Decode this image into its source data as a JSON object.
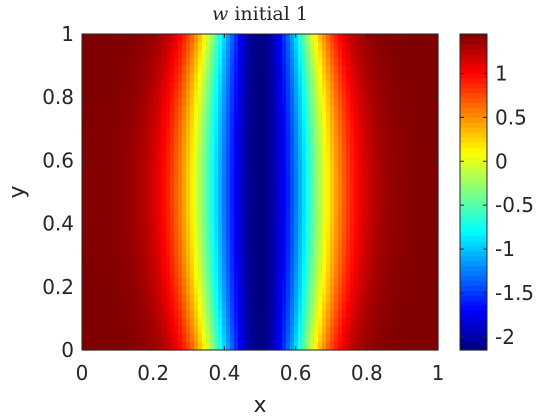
{
  "chart_data": {
    "type": "heatmap",
    "title_var": "w",
    "title_rest": " initial 1",
    "xlabel": "x",
    "ylabel": "y",
    "xlim": [
      0,
      1
    ],
    "ylim": [
      0,
      1
    ],
    "xticks": [
      0,
      0.2,
      0.4,
      0.6,
      0.8,
      1
    ],
    "yticks": [
      0,
      0.2,
      0.4,
      0.6,
      0.8,
      1
    ],
    "xtick_labels": [
      "0",
      "0.2",
      "0.4",
      "0.6",
      "0.8",
      "1"
    ],
    "ytick_labels": [
      "0",
      "0.2",
      "0.4",
      "0.6",
      "0.8",
      "1"
    ],
    "colorbar": {
      "range": [
        -2.15,
        1.45
      ],
      "ticks": [
        1,
        0.5,
        0,
        -0.5,
        -1,
        -1.5,
        -2
      ],
      "tick_labels": [
        "1",
        "0.5",
        "0",
        "-0.5",
        "-1",
        "-1.5",
        "-2"
      ],
      "colormap": "jet"
    },
    "field": {
      "description_formula": "w(x,y) = 1.45 - 3.6*exp(-((x-0.5)/s(y))^2), s(y) widest at y=0.5",
      "center_x": 0.5,
      "max_value": 1.45,
      "min_value": -2.15,
      "width_edge": 0.155,
      "width_middle": 0.19
    },
    "grid": false
  }
}
